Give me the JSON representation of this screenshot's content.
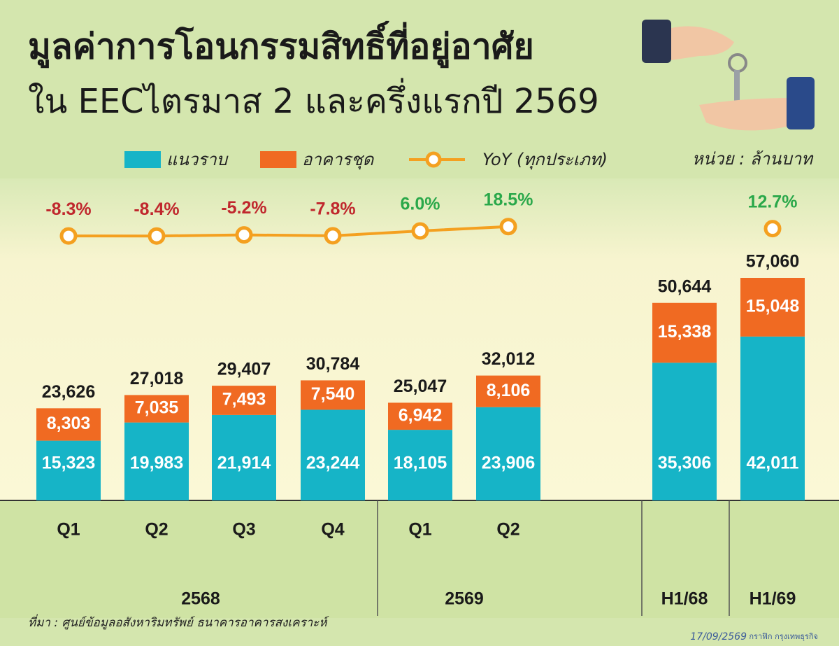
{
  "chart_data": {
    "type": "stacked-bar",
    "title": "มูลค่าการโอนกรรมสิทธิ์ที่อยู่อาศัย",
    "subtitle": "ใน EECไตรมาส 2 และครึ่งแรกปี 2569",
    "unit": "หน่วย : ล้านบาท",
    "categories": [
      "Q1",
      "Q2",
      "Q3",
      "Q4",
      "Q1",
      "Q2",
      null,
      null
    ],
    "group": [
      "2568",
      "2568",
      "2568",
      "2568",
      "2569",
      "2569",
      "H1/68",
      "H1/69"
    ],
    "series": [
      {
        "name": "แนวราบ",
        "color": "#16b4c7",
        "values": [
          15323,
          19983,
          21914,
          23244,
          18105,
          23906,
          35306,
          42011
        ],
        "value_labels": [
          "15,323",
          "19,983",
          "21,914",
          "23,244",
          "18,105",
          "23,906",
          "35,306",
          "42,011"
        ]
      },
      {
        "name": "อาคารชุด",
        "color": "#f06a22",
        "values": [
          8303,
          7035,
          7493,
          7540,
          6942,
          8106,
          15338,
          15048
        ],
        "value_labels": [
          "8,303",
          "7,035",
          "7,493",
          "7,540",
          "6,942",
          "8,106",
          "15,338",
          "15,048"
        ]
      }
    ],
    "totals": {
      "values": [
        23626,
        27018,
        29407,
        30784,
        25047,
        32012,
        50644,
        57060
      ],
      "value_labels": [
        "23,626",
        "27,018",
        "29,407",
        "30,784",
        "25,047",
        "32,012",
        "50,644",
        "57,060"
      ]
    },
    "yoy": {
      "name": "YoY (ทุกประเภท)",
      "color": "#f4a020",
      "values": [
        -8.3,
        -8.4,
        -5.2,
        -7.8,
        6.0,
        18.5,
        null,
        12.7
      ],
      "value_labels": [
        "-8.3%",
        "-8.4%",
        "-5.2%",
        "-7.8%",
        "6.0%",
        "18.5%",
        null,
        "12.7%"
      ]
    },
    "source": "ที่มา : ศูนย์ข้อมูลอสังหาริมทรัพย์ ธนาคารอาคารสงเคราะห์",
    "date": "17/09/2569",
    "credit": "กราฟิก กรุงเทพธุรกิจ"
  }
}
